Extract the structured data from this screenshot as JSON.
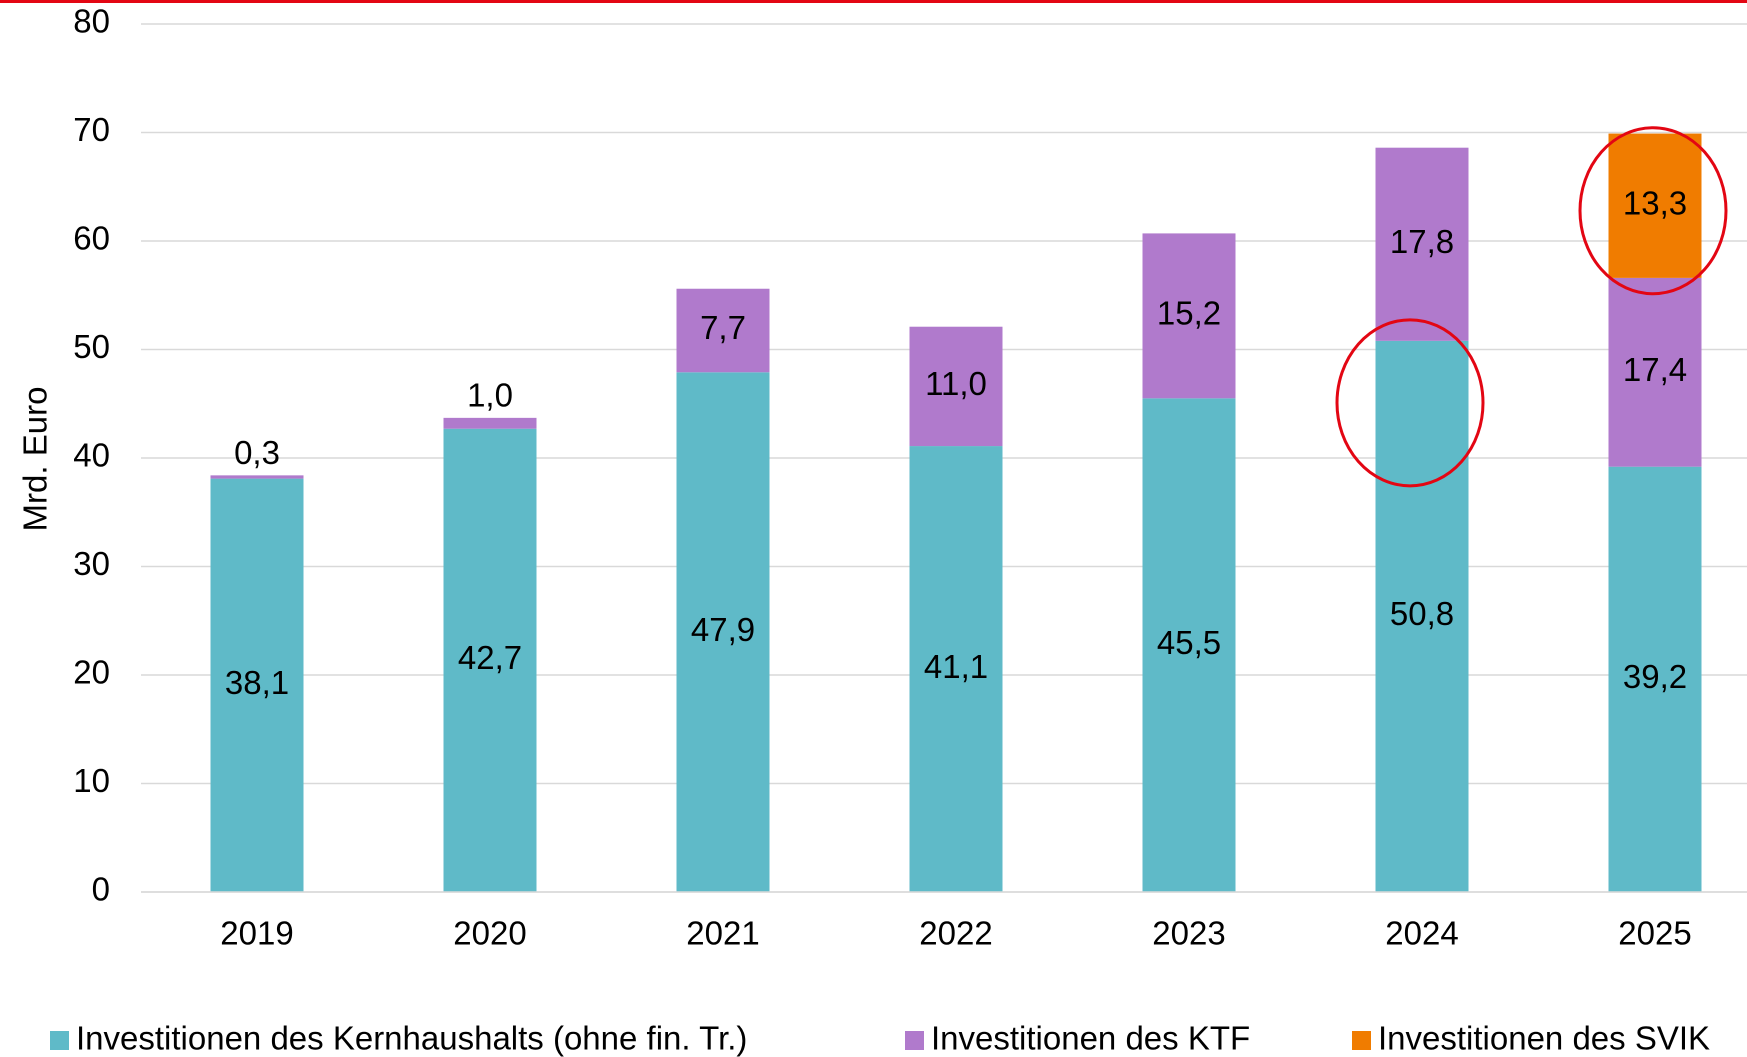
{
  "chart_data": {
    "type": "stacked_bar",
    "y_label": "Mrd. Euro",
    "categories": [
      "2019",
      "2020",
      "2021",
      "2022",
      "2023",
      "2024",
      "2025"
    ],
    "series": [
      {
        "name": "Investitionen des Kernhaushalts (ohne fin. Tr.)",
        "color": "#5fbac8",
        "values": [
          38.1,
          42.7,
          47.9,
          41.1,
          45.5,
          50.8,
          39.2
        ],
        "value_labels": [
          "38,1",
          "42,7",
          "47,9",
          "41,1",
          "45,5",
          "50,8",
          "39,2"
        ]
      },
      {
        "name": "Investitionen des KTF",
        "color": "#b07acc",
        "values": [
          0.3,
          1.0,
          7.7,
          11.0,
          15.2,
          17.8,
          17.4
        ],
        "value_labels": [
          "0,3",
          "1,0",
          "7,7",
          "11,0",
          "15,2",
          "17,8",
          "17,4"
        ]
      },
      {
        "name": "Investitionen des SVIK",
        "color": "#f07c00",
        "values": [
          null,
          null,
          null,
          null,
          null,
          null,
          13.3
        ],
        "value_labels": [
          null,
          null,
          null,
          null,
          null,
          null,
          "13,3"
        ]
      }
    ],
    "ylim": [
      0,
      80
    ],
    "yticks": [
      0,
      10,
      20,
      30,
      40,
      50,
      60,
      70,
      80
    ],
    "grid": true,
    "legend": "bottom"
  }
}
